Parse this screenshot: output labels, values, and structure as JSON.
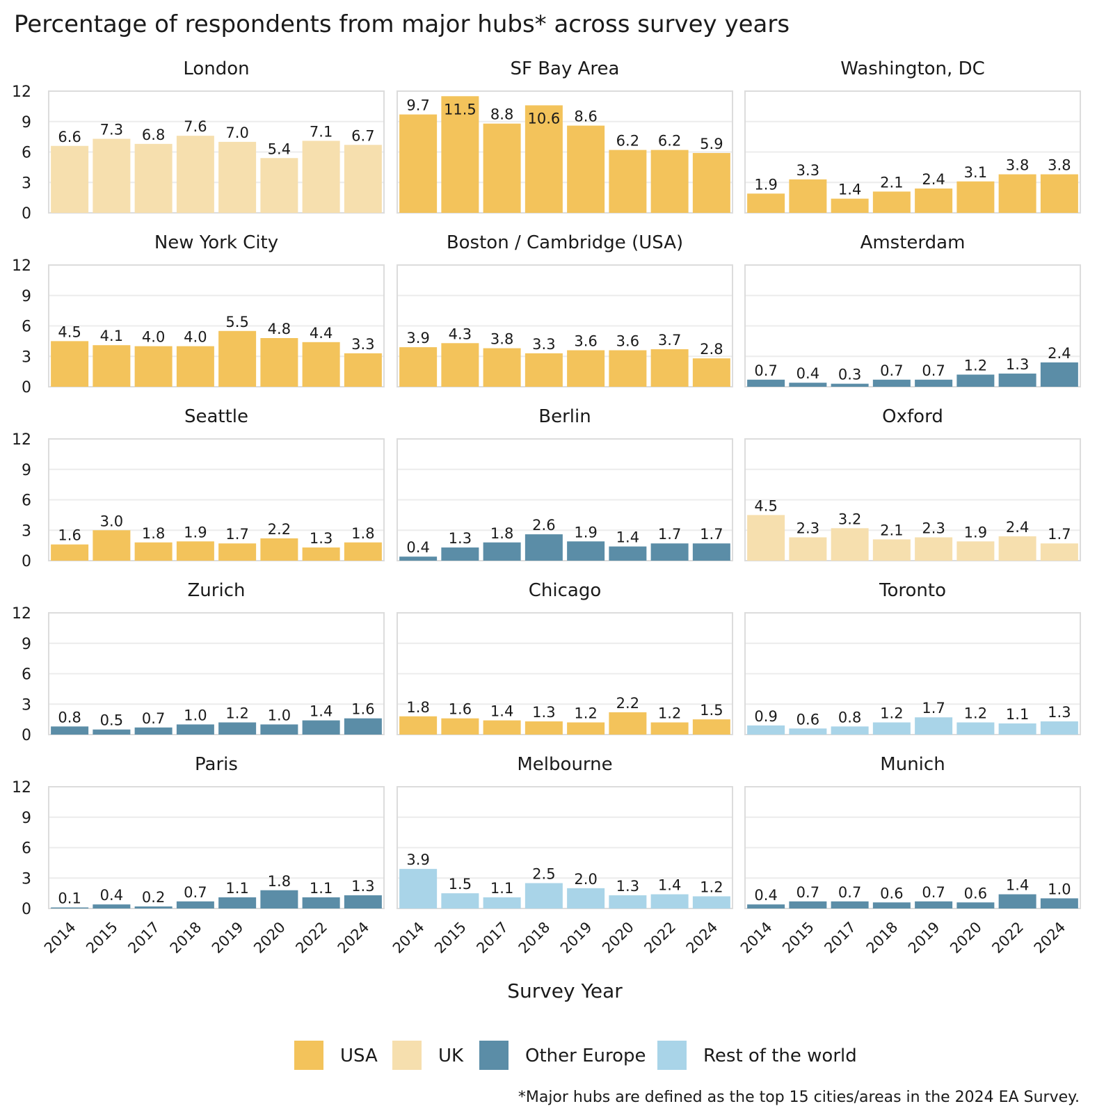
{
  "chart_data": {
    "type": "bar",
    "title": "Percentage of respondents from major hubs* across survey years",
    "xlabel": "Survey Year",
    "ylabel": "",
    "ylim": [
      0,
      12
    ],
    "yticks": [
      0,
      3,
      6,
      9,
      12
    ],
    "categories": [
      "2014",
      "2015",
      "2017",
      "2018",
      "2019",
      "2020",
      "2022",
      "2024"
    ],
    "colors": {
      "USA": "#f3c35b",
      "UK": "#f6dfae",
      "Other Europe": "#5b8da7",
      "Rest of the world": "#a9d4e8"
    },
    "legend": [
      "USA",
      "UK",
      "Other Europe",
      "Rest of the world"
    ],
    "legend_position": "bottom-center",
    "footnote": "*Major hubs are defined as the top 15 cities/areas in the 2024 EA Survey.",
    "panels": [
      {
        "name": "London",
        "region": "UK",
        "values": [
          6.6,
          7.3,
          6.8,
          7.6,
          7.0,
          5.4,
          7.1,
          6.7
        ]
      },
      {
        "name": "SF Bay Area",
        "region": "USA",
        "values": [
          9.7,
          11.5,
          8.8,
          10.6,
          8.6,
          6.2,
          6.2,
          5.9
        ]
      },
      {
        "name": "Washington, DC",
        "region": "USA",
        "values": [
          1.9,
          3.3,
          1.4,
          2.1,
          2.4,
          3.1,
          3.8,
          3.8
        ]
      },
      {
        "name": "New York City",
        "region": "USA",
        "values": [
          4.5,
          4.1,
          4.0,
          4.0,
          5.5,
          4.8,
          4.4,
          3.3
        ]
      },
      {
        "name": "Boston / Cambridge (USA)",
        "region": "USA",
        "values": [
          3.9,
          4.3,
          3.8,
          3.3,
          3.6,
          3.6,
          3.7,
          2.8
        ]
      },
      {
        "name": "Amsterdam",
        "region": "Other Europe",
        "values": [
          0.7,
          0.4,
          0.3,
          0.7,
          0.7,
          1.2,
          1.3,
          2.4
        ]
      },
      {
        "name": "Seattle",
        "region": "USA",
        "values": [
          1.6,
          3.0,
          1.8,
          1.9,
          1.7,
          2.2,
          1.3,
          1.8
        ]
      },
      {
        "name": "Berlin",
        "region": "Other Europe",
        "values": [
          0.4,
          1.3,
          1.8,
          2.6,
          1.9,
          1.4,
          1.7,
          1.7
        ]
      },
      {
        "name": "Oxford",
        "region": "UK",
        "values": [
          4.5,
          2.3,
          3.2,
          2.1,
          2.3,
          1.9,
          2.4,
          1.7
        ]
      },
      {
        "name": "Zurich",
        "region": "Other Europe",
        "values": [
          0.8,
          0.5,
          0.7,
          1.0,
          1.2,
          1.0,
          1.4,
          1.6
        ]
      },
      {
        "name": "Chicago",
        "region": "USA",
        "values": [
          1.8,
          1.6,
          1.4,
          1.3,
          1.2,
          2.2,
          1.2,
          1.5
        ]
      },
      {
        "name": "Toronto",
        "region": "Rest of the world",
        "values": [
          0.9,
          0.6,
          0.8,
          1.2,
          1.7,
          1.2,
          1.1,
          1.3
        ]
      },
      {
        "name": "Paris",
        "region": "Other Europe",
        "values": [
          0.1,
          0.4,
          0.2,
          0.7,
          1.1,
          1.8,
          1.1,
          1.3
        ]
      },
      {
        "name": "Melbourne",
        "region": "Rest of the world",
        "values": [
          3.9,
          1.5,
          1.1,
          2.5,
          2.0,
          1.3,
          1.4,
          1.2
        ]
      },
      {
        "name": "Munich",
        "region": "Other Europe",
        "values": [
          0.4,
          0.7,
          0.7,
          0.6,
          0.7,
          0.6,
          1.4,
          1.0
        ]
      }
    ]
  }
}
